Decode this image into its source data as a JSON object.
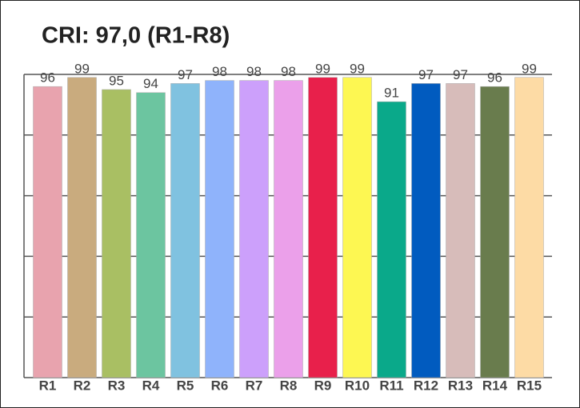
{
  "chart_data": {
    "type": "bar",
    "title": "CRI: 97,0 (R1-R8)",
    "categories": [
      "R1",
      "R2",
      "R3",
      "R4",
      "R5",
      "R6",
      "R7",
      "R8",
      "R9",
      "R10",
      "R11",
      "R12",
      "R13",
      "R14",
      "R15"
    ],
    "values": [
      96,
      99,
      95,
      94,
      97,
      98,
      98,
      98,
      99,
      99,
      91,
      97,
      97,
      96,
      99
    ],
    "colors": [
      "#e8a3ae",
      "#c9ab7e",
      "#a9bf63",
      "#6cc5a0",
      "#80c2e0",
      "#8fb3fb",
      "#cca0fb",
      "#eba0ea",
      "#e8204b",
      "#fdf752",
      "#0aa98a",
      "#015bbf",
      "#d7bcba",
      "#697c4d",
      "#fddba5"
    ],
    "ylim": [
      0,
      100
    ],
    "yticks": [
      0,
      20,
      40,
      60,
      80,
      100
    ],
    "grid": true
  }
}
